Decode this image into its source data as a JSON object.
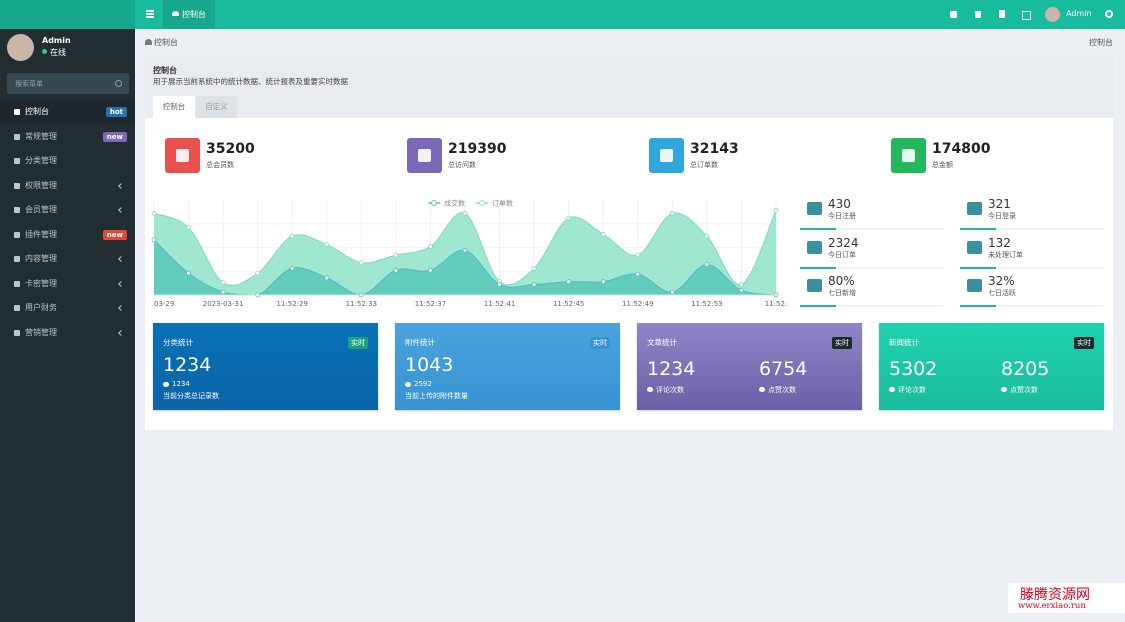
{
  "topbar": {
    "tab": "控制台",
    "user": "Admin"
  },
  "sidebar": {
    "user": "Admin",
    "status": "在线",
    "search_placeholder": "搜索菜单",
    "menu": [
      {
        "label": "控制台",
        "badge": "hot",
        "active": true
      },
      {
        "label": "常规管理",
        "badge": "new"
      },
      {
        "label": "分类管理"
      },
      {
        "label": "权限管理",
        "arrow": true
      },
      {
        "label": "会员管理",
        "arrow": true
      },
      {
        "label": "插件管理",
        "badge": "new"
      },
      {
        "label": "内容管理",
        "arrow": true
      },
      {
        "label": "卡密管理",
        "arrow": true
      },
      {
        "label": "用户财务",
        "arrow": true
      },
      {
        "label": "营销管理",
        "arrow": true
      }
    ]
  },
  "breadcrumb": {
    "left": "控制台",
    "right": "控制台"
  },
  "panel": {
    "title": "控制台",
    "description": "用于展示当前系统中的统计数据、统计报表及重要实时数据",
    "tabs": [
      "控制台",
      "自定义"
    ]
  },
  "stats": [
    {
      "value": 35200,
      "label": "总会员数",
      "color": "#e9514f"
    },
    {
      "value": 219390,
      "label": "总访问数",
      "color": "#7b68b9"
    },
    {
      "value": 32143,
      "label": "总订单数",
      "color": "#2fa6dc"
    },
    {
      "value": 174800,
      "label": "总金额",
      "color": "#23b85c"
    }
  ],
  "chart": {
    "type": "area",
    "categories": [
      "03-29",
      null,
      "2023-03-31",
      null,
      "11:52:29",
      null,
      "11:52:33",
      null,
      "11:52:37",
      null,
      "11:52:41",
      null,
      "11:52:45",
      null,
      "11:52:49",
      null,
      "11:52:53",
      null,
      "11:52:"
    ],
    "series": [
      {
        "name": "成交数",
        "color": "#5ccab8",
        "values": [
          58,
          23,
          3,
          0,
          28,
          18,
          0,
          26,
          26,
          47,
          11,
          11,
          14,
          14,
          22,
          3,
          32,
          5,
          0
        ]
      },
      {
        "name": "订单数",
        "color": "#8ee3c8",
        "values": [
          86,
          71,
          13,
          23,
          62,
          53,
          34,
          42,
          51,
          86,
          14,
          28,
          81,
          64,
          42,
          86,
          62,
          11,
          89
        ]
      }
    ],
    "ylim": [
      0,
      100
    ]
  },
  "mini_stats": [
    {
      "value": 430,
      "label": "今日注册"
    },
    {
      "value": 321,
      "label": "今日登录"
    },
    {
      "value": 2324,
      "label": "今日订单"
    },
    {
      "value": 132,
      "label": "未处理订单"
    },
    {
      "value": "80%",
      "label": "七日新增"
    },
    {
      "value": "32%",
      "label": "七日活跃"
    }
  ],
  "cards": [
    {
      "title": "分类统计",
      "tag": "实时",
      "value": 1234,
      "sub_value": 1234,
      "note": "当前分类总记录数"
    },
    {
      "title": "附件统计",
      "tag": "实时",
      "value": 1043,
      "sub_value": 2592,
      "note": "当前上传的附件数量"
    },
    {
      "title": "文章统计",
      "tag": "实时",
      "items": [
        {
          "value": 1234,
          "label": "评论次数"
        },
        {
          "value": 6754,
          "label": "点赞次数"
        }
      ]
    },
    {
      "title": "新闻统计",
      "tag": "实时",
      "items": [
        {
          "value": 5302,
          "label": "评论次数"
        },
        {
          "value": 8205,
          "label": "点赞次数"
        }
      ]
    }
  ],
  "watermark": {
    "name": "滕腾资源网",
    "url": "www.erxiao.run"
  }
}
